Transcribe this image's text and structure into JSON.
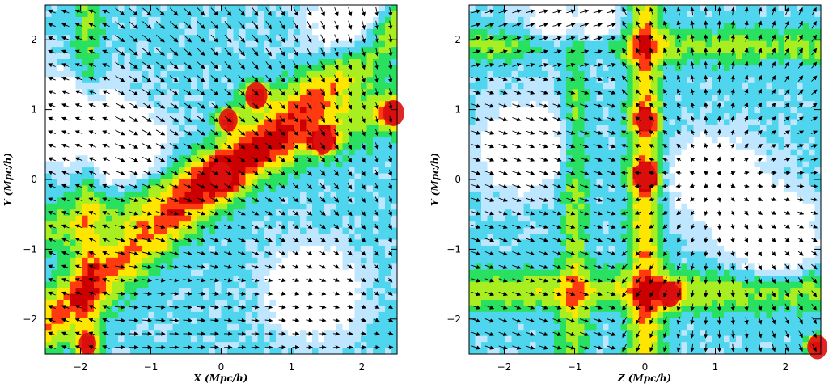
{
  "chart_data": [
    {
      "type": "heatmap",
      "title": "",
      "xlabel": "X (Mpc/h)",
      "ylabel": "Y (Mpc/h)",
      "xlim": [
        -2.5,
        2.5
      ],
      "ylim": [
        -2.5,
        2.5
      ],
      "xticks": [
        -2,
        -1,
        0,
        1,
        2
      ],
      "yticks": [
        -2,
        -1,
        0,
        1,
        2
      ],
      "overlay": "velocity field arrows",
      "colormap": [
        "#ffffff",
        "#bfe6ff",
        "#4fd6ee",
        "#29e060",
        "#a8ee20",
        "#ffe600",
        "#ff3a10",
        "#cc0000"
      ],
      "density_peaks": [
        {
          "x": 0.0,
          "y": 0.05,
          "intensity": 1.0
        },
        {
          "x": 0.5,
          "y": 1.2,
          "intensity": 0.95
        },
        {
          "x": 1.45,
          "y": 0.55,
          "intensity": 0.85
        },
        {
          "x": 2.45,
          "y": 0.95,
          "intensity": 0.9
        },
        {
          "x": 0.1,
          "y": 0.85,
          "intensity": 0.7
        },
        {
          "x": -1.9,
          "y": -2.35,
          "intensity": 0.6
        }
      ],
      "void_regions": [
        {
          "x": -2.2,
          "y": 0.9
        },
        {
          "x": -1.4,
          "y": 0.4
        },
        {
          "x": 1.3,
          "y": -1.6
        },
        {
          "x": 1.9,
          "y": 2.2
        }
      ]
    },
    {
      "type": "heatmap",
      "title": "",
      "xlabel": "Z (Mpc/h)",
      "ylabel": "Y (Mpc/h)",
      "xlim": [
        -2.5,
        2.5
      ],
      "ylim": [
        -2.5,
        2.5
      ],
      "xticks": [
        -2,
        -1,
        0,
        1,
        2
      ],
      "yticks": [
        -2,
        -1,
        0,
        1,
        2
      ],
      "overlay": "velocity field arrows",
      "colormap": [
        "#ffffff",
        "#bfe6ff",
        "#4fd6ee",
        "#29e060",
        "#a8ee20",
        "#ffe600",
        "#ff3a10",
        "#cc0000"
      ],
      "density_peaks": [
        {
          "x": 0.0,
          "y": 0.05,
          "intensity": 1.0
        },
        {
          "x": 0.35,
          "y": -1.65,
          "intensity": 0.85
        },
        {
          "x": 2.45,
          "y": -2.4,
          "intensity": 0.8
        },
        {
          "x": 0.0,
          "y": 0.85,
          "intensity": 0.6
        }
      ],
      "void_regions": [
        {
          "x": -1.7,
          "y": 0.5
        },
        {
          "x": 1.0,
          "y": 0.0
        },
        {
          "x": -1.0,
          "y": 2.2
        },
        {
          "x": 1.8,
          "y": -0.8
        }
      ]
    }
  ]
}
